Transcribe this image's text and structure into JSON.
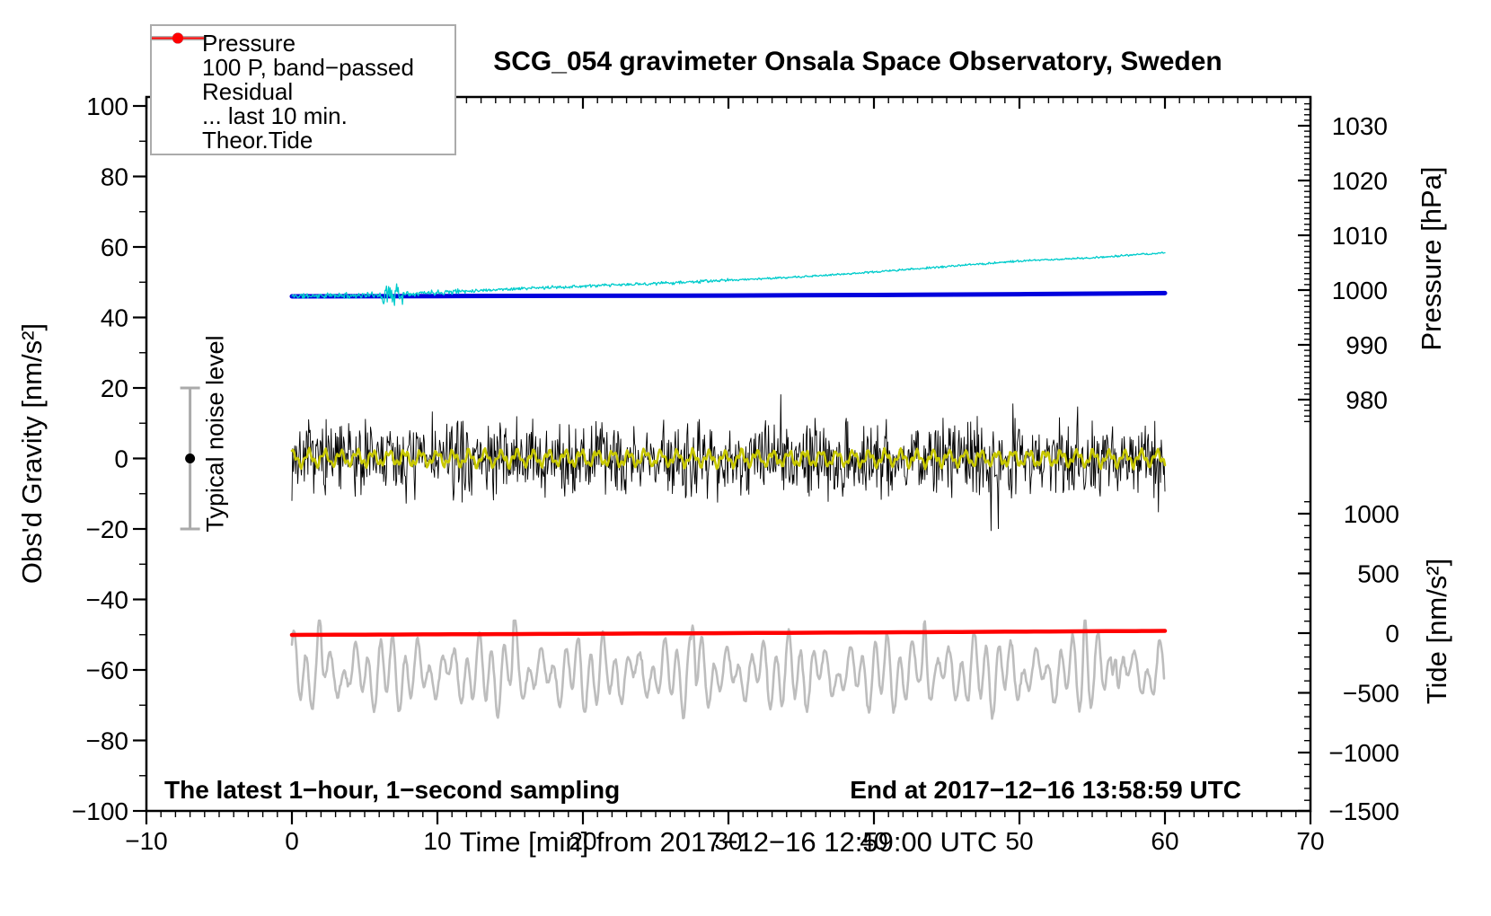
{
  "title": "SCG_054 gravimeter Onsala Space Observatory, Sweden",
  "annotations": {
    "sampling": "The latest 1−hour, 1−second sampling",
    "end": "End at 2017−12−16 13:58:59 UTC",
    "noise_label": "Typical noise level"
  },
  "legend": {
    "items": [
      {
        "label": "Pressure",
        "color": "#0000dd",
        "line_width": 2,
        "marker": true
      },
      {
        "label": "100 P, band−passed",
        "color": "#00cccc",
        "line_width": 2,
        "marker": true
      },
      {
        "label": "Residual",
        "color": "#000000",
        "line_width": 4.5,
        "marker": false
      },
      {
        "label": "... last 10 min.",
        "color": "#bdbdbd",
        "line_width": 4.5,
        "marker": false
      },
      {
        "label": "Theor.Tide",
        "color": "#ff0000",
        "line_width": 2,
        "marker": true
      }
    ]
  },
  "chart_data": {
    "type": "line",
    "title": "SCG_054 gravimeter Onsala Space Observatory, Sweden",
    "grid": false,
    "legend_position": "top-left",
    "data_window_min": [
      0,
      60
    ],
    "x_axis": {
      "label": "Time [min] from 2017−12−16 12:59:00 UTC",
      "range": [
        -10,
        70
      ],
      "major_tick_values": [
        -10,
        0,
        10,
        20,
        30,
        40,
        50,
        60,
        70
      ],
      "tick_labels": [
        "−10",
        "0",
        "10",
        "20",
        "30",
        "40",
        "50",
        "60",
        "70"
      ],
      "minor_tick_step": 1
    },
    "left_axis": {
      "label": "Obs'd Gravity [nm/s²]",
      "range": [
        -100,
        100
      ],
      "major_tick_values": [
        -100,
        -80,
        -60,
        -40,
        -20,
        0,
        20,
        40,
        60,
        80,
        100
      ],
      "tick_labels": [
        "−100",
        "−80",
        "−60",
        "−40",
        "−20",
        "0",
        "20",
        "40",
        "60",
        "80",
        "100"
      ],
      "minor_tick_step": 10
    },
    "right_axis_top": {
      "label": "Pressure [hPa]",
      "major_tick_values": [
        980,
        990,
        1000,
        1010,
        1020,
        1030
      ],
      "tick_labels": [
        "980",
        "990",
        "1000",
        "1010",
        "1020",
        "1030"
      ],
      "minor_tick_step": 1,
      "minor_tick_range": [
        976,
        1034
      ]
    },
    "right_axis_bottom": {
      "label": "Tide [nm/s²]",
      "major_tick_values": [
        -1500,
        -1000,
        -500,
        0,
        500,
        1000
      ],
      "tick_labels": [
        "−1500",
        "−1000",
        "−500",
        "0",
        "500",
        "1000"
      ],
      "minor_tick_step": 100,
      "minor_tick_range": [
        -1500,
        1100
      ]
    },
    "series": [
      {
        "name": "pressure",
        "legend": "Pressure",
        "axis": "pressure_hpa",
        "color": "#0000dd",
        "width": 5,
        "points": [
          [
            0,
            998.85
          ],
          [
            10,
            998.9
          ],
          [
            20,
            998.95
          ],
          [
            30,
            999.0
          ],
          [
            40,
            999.1
          ],
          [
            50,
            999.25
          ],
          [
            60,
            999.45
          ]
        ]
      },
      {
        "name": "pressure_bandpassed",
        "legend": "100 P, band−passed",
        "axis": "pressure_hpa",
        "color": "#00cccc",
        "width": 1.3,
        "trend_points": [
          [
            0,
            998.9
          ],
          [
            5,
            999.05
          ],
          [
            10,
            999.6
          ],
          [
            15,
            1000.2
          ],
          [
            20,
            1000.7
          ],
          [
            25,
            1001.2
          ],
          [
            30,
            1001.8
          ],
          [
            35,
            1002.4
          ],
          [
            40,
            1003.3
          ],
          [
            45,
            1004.3
          ],
          [
            50,
            1005.3
          ],
          [
            55,
            1005.9
          ],
          [
            60,
            1006.8
          ]
        ],
        "noise_hpa": {
          "early": 0.6,
          "mid": 0.35,
          "late": 0.22
        },
        "spike_cluster_min": [
          6.0,
          7.6
        ],
        "spike_amp_hpa": 1.7,
        "seed": 11
      },
      {
        "name": "residual",
        "legend": "Residual",
        "axis": "gravity_nms2",
        "color": "#000000",
        "width": 0.9,
        "mean": 0,
        "typical_amplitude": 13,
        "extreme_amplitude": 22,
        "seed": 7
      },
      {
        "name": "residual_smoothed",
        "legend": null,
        "axis": "gravity_nms2",
        "color": "#c8c800",
        "width": 2.6,
        "mean": 0,
        "amplitude": 2.2,
        "period_min": 1.1,
        "seed": 3
      },
      {
        "name": "residual_last10",
        "legend": "... last 10 min.",
        "axis": "gravity_nms2",
        "color": "#bdbdbd",
        "width": 2.6,
        "center": -61,
        "amplitude": 8,
        "period_min": 0.85,
        "spike_times_min": [
          1.9,
          15.3,
          27.6,
          43.5,
          54.5,
          56.6
        ],
        "spike_amplitude": 13,
        "seed": 21
      },
      {
        "name": "theor_tide",
        "legend": "Theor.Tide",
        "axis": "tide_nms2",
        "color": "#ff0000",
        "width": 4.5,
        "points": [
          [
            0,
            -15
          ],
          [
            15,
            -8
          ],
          [
            30,
            0
          ],
          [
            45,
            9
          ],
          [
            60,
            19
          ]
        ]
      }
    ],
    "noise_marker": {
      "label": "Typical noise level",
      "x_min": -7,
      "value": 0,
      "error": 20,
      "bar_color": "#aaaaaa",
      "dot_color": "#000000"
    }
  }
}
